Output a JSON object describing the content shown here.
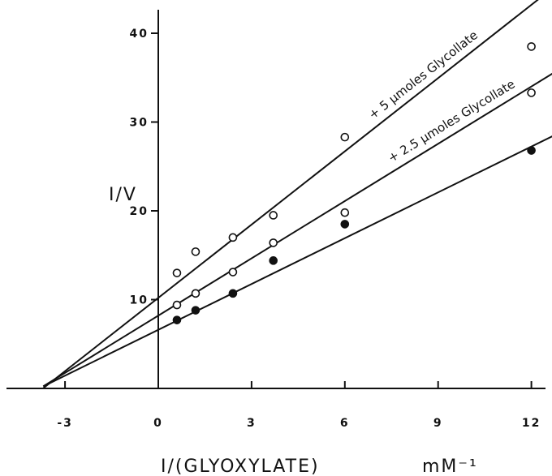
{
  "chart_data": {
    "type": "scatter",
    "title": "",
    "xlabel": "I/(GLYOXYLATE)",
    "xunit": "mM⁻¹",
    "ylabel": "I/V",
    "xlim": [
      -4.5,
      12.5
    ],
    "ylim": [
      0,
      45
    ],
    "x_ticks": [
      -3,
      0,
      3,
      6,
      9,
      12
    ],
    "y_ticks": [
      10,
      20,
      30,
      40
    ],
    "x_tick_labels": [
      "-3",
      "0",
      "3",
      "6",
      "9",
      "12"
    ],
    "y_tick_labels": [
      "10",
      "20",
      "30",
      "40"
    ],
    "grid": false,
    "series": [
      {
        "name": "+ 5 µmoles Glycollate",
        "marker": "open-circle",
        "line": {
          "intercept": 10.2,
          "slope": 2.75
        },
        "line_x_range": [
          -3.7,
          13
        ],
        "label_at_x": 8.6,
        "points": [
          {
            "x": 0.6,
            "y": 13.0
          },
          {
            "x": 1.2,
            "y": 15.4
          },
          {
            "x": 2.4,
            "y": 17.0
          },
          {
            "x": 3.7,
            "y": 19.5
          },
          {
            "x": 6.0,
            "y": 28.3
          },
          {
            "x": 12.0,
            "y": 38.5
          }
        ]
      },
      {
        "name": "+ 2.5 µmoles Glycollate",
        "marker": "open-circle",
        "line": {
          "intercept": 8.2,
          "slope": 2.15
        },
        "line_x_range": [
          -3.7,
          13
        ],
        "label_at_x": 9.5,
        "points": [
          {
            "x": 0.6,
            "y": 9.4
          },
          {
            "x": 1.2,
            "y": 10.7
          },
          {
            "x": 2.4,
            "y": 13.1
          },
          {
            "x": 3.7,
            "y": 16.4
          },
          {
            "x": 6.0,
            "y": 19.8
          },
          {
            "x": 12.0,
            "y": 33.3
          }
        ]
      },
      {
        "name": "",
        "marker": "filled-circle",
        "line": {
          "intercept": 6.6,
          "slope": 1.72
        },
        "line_x_range": [
          -3.7,
          13
        ],
        "points": [
          {
            "x": 0.6,
            "y": 7.7
          },
          {
            "x": 1.2,
            "y": 8.8
          },
          {
            "x": 2.4,
            "y": 10.7
          },
          {
            "x": 3.7,
            "y": 14.4
          },
          {
            "x": 6.0,
            "y": 18.5
          },
          {
            "x": 12.0,
            "y": 26.8
          }
        ]
      }
    ]
  }
}
